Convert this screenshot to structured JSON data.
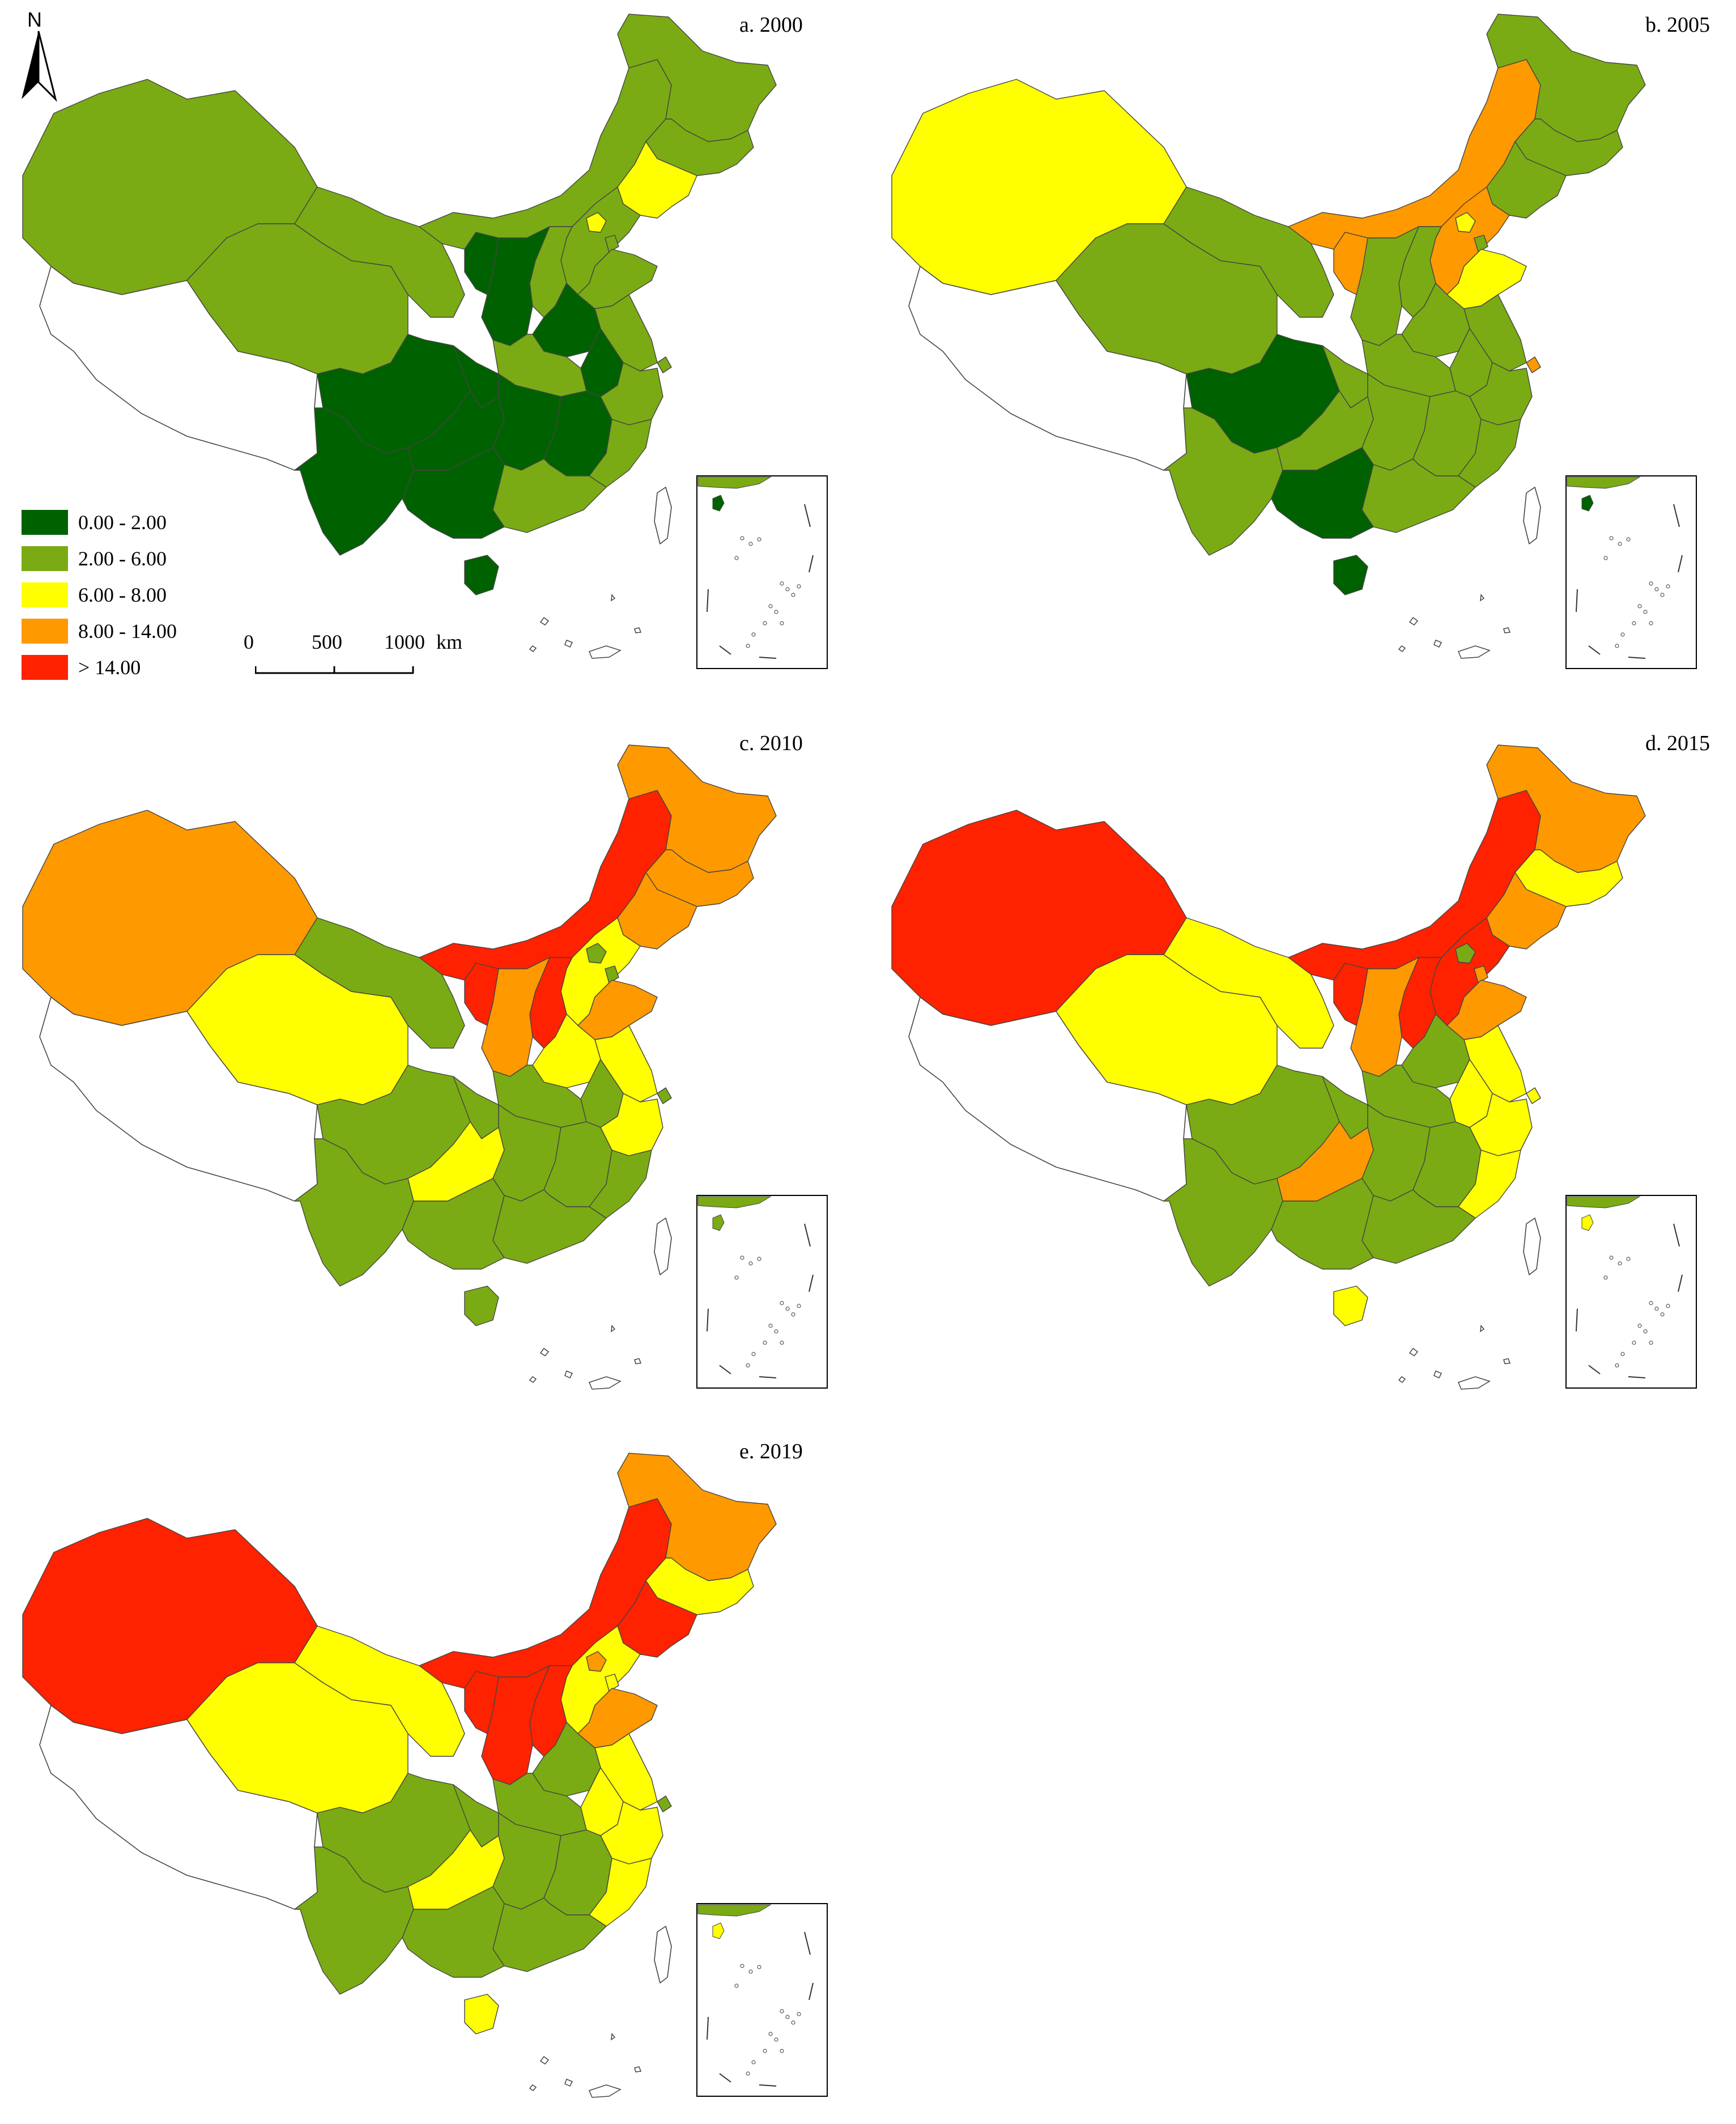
{
  "north_arrow": {
    "label": "N",
    "icon": "north-arrow-icon"
  },
  "legend": {
    "classes": [
      {
        "label": "0.00 - 2.00",
        "color": "#006100"
      },
      {
        "label": "2.00 - 6.00",
        "color": "#7aab14"
      },
      {
        "label": "6.00 - 8.00",
        "color": "#ffff00"
      },
      {
        "label": "8.00 - 14.00",
        "color": "#ff9900"
      },
      {
        "label": "> 14.00",
        "color": "#ff2200"
      }
    ]
  },
  "scale_bar": {
    "ticks": [
      "0",
      "500",
      "1000"
    ],
    "unit": "km"
  },
  "panels": [
    {
      "title": "a. 2000",
      "regions": {
        "xinjiang": 2,
        "tibet": null,
        "qinghai": 2,
        "gansu": 2,
        "inner_mongolia": 2,
        "heilongjiang": 2,
        "jilin": 2,
        "liaoning": 3,
        "hebei": 2,
        "beijing": 3,
        "tianjin": 2,
        "shanxi": 2,
        "shaanxi": 1,
        "ningxia": 1,
        "henan": 1,
        "shandong": 2,
        "jiangsu": 2,
        "anhui": 1,
        "hubei": 2,
        "sichuan": 1,
        "chongqing": 1,
        "yunnan": 1,
        "guizhou": 1,
        "hunan": 1,
        "jiangxi": 1,
        "zhejiang": 2,
        "fujian": 2,
        "guangdong": 2,
        "guangxi": 1,
        "hainan": 1,
        "shanghai": 2,
        "taiwan": null
      }
    },
    {
      "title": "b. 2005",
      "regions": {
        "xinjiang": 3,
        "tibet": null,
        "qinghai": 2,
        "gansu": 2,
        "inner_mongolia": 4,
        "heilongjiang": 2,
        "jilin": 2,
        "liaoning": 2,
        "hebei": 4,
        "beijing": 3,
        "tianjin": 2,
        "shanxi": 2,
        "shaanxi": 2,
        "ningxia": 4,
        "henan": 2,
        "shandong": 3,
        "jiangsu": 2,
        "anhui": 2,
        "hubei": 2,
        "sichuan": 1,
        "chongqing": 2,
        "yunnan": 2,
        "guizhou": 2,
        "hunan": 2,
        "jiangxi": 2,
        "zhejiang": 2,
        "fujian": 2,
        "guangdong": 2,
        "guangxi": 1,
        "hainan": 1,
        "shanghai": 4,
        "taiwan": null
      }
    },
    {
      "title": "c. 2010",
      "regions": {
        "xinjiang": 4,
        "tibet": null,
        "qinghai": 3,
        "gansu": 2,
        "inner_mongolia": 5,
        "heilongjiang": 4,
        "jilin": 4,
        "liaoning": 4,
        "hebei": 3,
        "beijing": 2,
        "tianjin": 2,
        "shanxi": 5,
        "shaanxi": 4,
        "ningxia": 5,
        "henan": 3,
        "shandong": 4,
        "jiangsu": 3,
        "anhui": 2,
        "hubei": 2,
        "sichuan": 2,
        "chongqing": 2,
        "yunnan": 2,
        "guizhou": 3,
        "hunan": 2,
        "jiangxi": 2,
        "zhejiang": 3,
        "fujian": 2,
        "guangdong": 2,
        "guangxi": 2,
        "hainan": 2,
        "shanghai": 2,
        "taiwan": null
      }
    },
    {
      "title": "d. 2015",
      "regions": {
        "xinjiang": 5,
        "tibet": null,
        "qinghai": 3,
        "gansu": 3,
        "inner_mongolia": 5,
        "heilongjiang": 4,
        "jilin": 3,
        "liaoning": 4,
        "hebei": 5,
        "beijing": 2,
        "tianjin": 4,
        "shanxi": 5,
        "shaanxi": 4,
        "ningxia": 5,
        "henan": 2,
        "shandong": 4,
        "jiangsu": 3,
        "anhui": 3,
        "hubei": 2,
        "sichuan": 2,
        "chongqing": 2,
        "yunnan": 2,
        "guizhou": 4,
        "hunan": 2,
        "jiangxi": 2,
        "zhejiang": 3,
        "fujian": 3,
        "guangdong": 2,
        "guangxi": 2,
        "hainan": 3,
        "shanghai": 3,
        "taiwan": null
      }
    },
    {
      "title": "e. 2019",
      "regions": {
        "xinjiang": 5,
        "tibet": null,
        "qinghai": 3,
        "gansu": 3,
        "inner_mongolia": 5,
        "heilongjiang": 4,
        "jilin": 3,
        "liaoning": 5,
        "hebei": 3,
        "beijing": 4,
        "tianjin": 3,
        "shanxi": 5,
        "shaanxi": 5,
        "ningxia": 5,
        "henan": 2,
        "shandong": 4,
        "jiangsu": 3,
        "anhui": 3,
        "hubei": 2,
        "sichuan": 2,
        "chongqing": 2,
        "yunnan": 2,
        "guizhou": 3,
        "hunan": 2,
        "jiangxi": 2,
        "zhejiang": 3,
        "fujian": 3,
        "guangdong": 2,
        "guangxi": 2,
        "hainan": 3,
        "shanghai": 2,
        "taiwan": null
      }
    }
  ]
}
